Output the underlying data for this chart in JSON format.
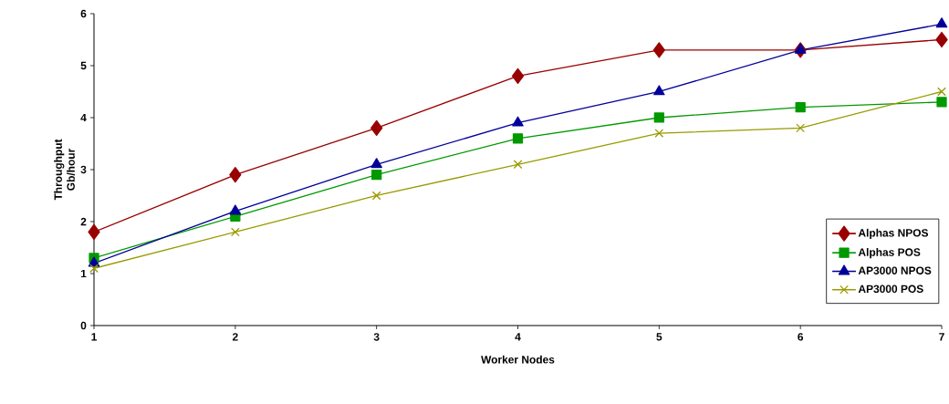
{
  "chart_data": {
    "type": "line",
    "xlabel": "Worker Nodes",
    "ylabel": "Throughput Gb/hour",
    "x": [
      1,
      2,
      3,
      4,
      5,
      6,
      7
    ],
    "xlim": [
      1,
      7
    ],
    "xticks": [
      1,
      2,
      3,
      4,
      5,
      6,
      7
    ],
    "ylim": [
      0,
      6
    ],
    "yticks": [
      0,
      1,
      2,
      3,
      4,
      5,
      6
    ],
    "grid": false,
    "legend": "right",
    "line_style": "solid",
    "series": [
      {
        "name": "Alphas NPOS",
        "color": "#990000",
        "marker": "diamond",
        "values": [
          1.8,
          2.9,
          3.8,
          4.8,
          5.3,
          5.3,
          5.5
        ]
      },
      {
        "name": "Alphas POS",
        "color": "#009900",
        "marker": "square",
        "values": [
          1.3,
          2.1,
          2.9,
          3.6,
          4.0,
          4.2,
          4.3
        ]
      },
      {
        "name": "AP3000 NPOS",
        "color": "#000099",
        "marker": "triangle",
        "values": [
          1.2,
          2.2,
          3.1,
          3.9,
          4.5,
          5.3,
          5.8
        ]
      },
      {
        "name": "AP3000 POS",
        "color": "#999900",
        "marker": "cross",
        "values": [
          1.1,
          1.8,
          2.5,
          3.1,
          3.7,
          3.8,
          4.5
        ]
      }
    ]
  }
}
